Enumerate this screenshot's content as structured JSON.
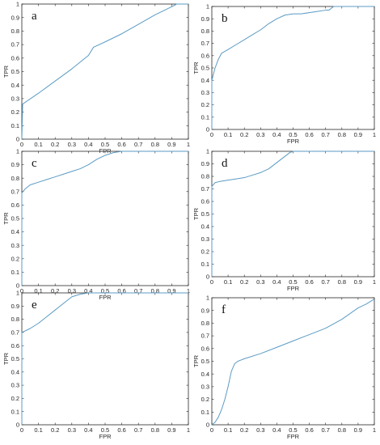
{
  "chart_data": [
    {
      "type": "line",
      "panel": "a",
      "xlabel": "FPR",
      "ylabel": "TPR",
      "xlim": [
        0,
        1
      ],
      "ylim": [
        0,
        1
      ],
      "grid": false,
      "xticks": [
        "0",
        "0.1",
        "0.2",
        "0.3",
        "0.4",
        "0.5",
        "0.6",
        "0.7",
        "0.8",
        "0.9",
        "1"
      ],
      "yticks": [
        "0",
        "0.1",
        "0.2",
        "0.3",
        "0.4",
        "0.5",
        "0.6",
        "0.7",
        "0.8",
        "0.9",
        "1"
      ],
      "line_color": "#5b9bc4",
      "x": [
        0,
        0.005,
        0.1,
        0.2,
        0.3,
        0.4,
        0.43,
        0.5,
        0.6,
        0.7,
        0.8,
        0.9,
        0.93,
        1.0
      ],
      "y": [
        0,
        0.26,
        0.34,
        0.43,
        0.52,
        0.62,
        0.68,
        0.72,
        0.78,
        0.85,
        0.92,
        0.98,
        1.0,
        1.0
      ]
    },
    {
      "type": "line",
      "panel": "b",
      "xlabel": "FPR",
      "ylabel": "TPR",
      "xlim": [
        0,
        1
      ],
      "ylim": [
        0,
        1
      ],
      "grid": false,
      "xticks": [
        "0",
        "0.1",
        "0.2",
        "0.3",
        "0.4",
        "0.5",
        "0.6",
        "0.7",
        "0.8",
        "0.9",
        "1"
      ],
      "yticks": [
        "0",
        "0.1",
        "0.2",
        "0.3",
        "0.4",
        "0.5",
        "0.6",
        "0.7",
        "0.8",
        "0.9",
        "1"
      ],
      "line_color": "#5b9bc4",
      "x": [
        0,
        0.0,
        0.02,
        0.04,
        0.06,
        0.1,
        0.15,
        0.2,
        0.25,
        0.3,
        0.35,
        0.4,
        0.45,
        0.5,
        0.55,
        0.6,
        0.65,
        0.7,
        0.72,
        0.75,
        1.0
      ],
      "y": [
        0,
        0.4,
        0.5,
        0.57,
        0.62,
        0.65,
        0.69,
        0.73,
        0.77,
        0.81,
        0.86,
        0.9,
        0.93,
        0.94,
        0.94,
        0.95,
        0.96,
        0.97,
        0.97,
        1.0,
        1.0
      ]
    },
    {
      "type": "line",
      "panel": "c",
      "xlabel": "FPR",
      "ylabel": "TPR",
      "xlim": [
        0,
        1
      ],
      "ylim": [
        0,
        1
      ],
      "grid": false,
      "xticks": [
        "0",
        "0.1",
        "0.2",
        "0.3",
        "0.4",
        "0.5",
        "0.6",
        "0.7",
        "0.8",
        "0.9",
        "1"
      ],
      "yticks": [
        "0",
        "0.1",
        "0.2",
        "0.3",
        "0.4",
        "0.5",
        "0.6",
        "0.7",
        "0.8",
        "0.9",
        "1"
      ],
      "line_color": "#5b9bc4",
      "x": [
        0,
        0.0,
        0.02,
        0.05,
        0.1,
        0.15,
        0.2,
        0.25,
        0.3,
        0.35,
        0.4,
        0.45,
        0.5,
        0.55,
        0.6,
        0.65,
        1.0
      ],
      "y": [
        0,
        0.69,
        0.72,
        0.75,
        0.77,
        0.79,
        0.81,
        0.83,
        0.85,
        0.87,
        0.9,
        0.94,
        0.97,
        0.99,
        1.0,
        1.0,
        1.0
      ]
    },
    {
      "type": "line",
      "panel": "d",
      "xlabel": "FPR",
      "ylabel": "TPR",
      "xlim": [
        0,
        1
      ],
      "ylim": [
        0,
        1
      ],
      "grid": false,
      "xticks": [
        "0",
        "0.1",
        "0.2",
        "0.3",
        "0.4",
        "0.5",
        "0.6",
        "0.7",
        "0.8",
        "0.9",
        "1"
      ],
      "yticks": [
        "0",
        "0.1",
        "0.2",
        "0.3",
        "0.4",
        "0.5",
        "0.6",
        "0.7",
        "0.8",
        "0.9",
        "1"
      ],
      "line_color": "#5b9bc4",
      "x": [
        0,
        0.0,
        0.02,
        0.05,
        0.1,
        0.15,
        0.2,
        0.25,
        0.3,
        0.35,
        0.4,
        0.45,
        0.48,
        0.5,
        0.6,
        0.7,
        1.0
      ],
      "y": [
        0,
        0.72,
        0.75,
        0.76,
        0.77,
        0.78,
        0.79,
        0.81,
        0.83,
        0.86,
        0.91,
        0.96,
        0.99,
        1.0,
        1.0,
        1.0,
        1.0
      ]
    },
    {
      "type": "line",
      "panel": "e",
      "xlabel": "FPR",
      "ylabel": "TPR",
      "xlim": [
        0,
        1
      ],
      "ylim": [
        0,
        1
      ],
      "grid": false,
      "xticks": [
        "0",
        "0.1",
        "0.2",
        "0.3",
        "0.4",
        "0.5",
        "0.6",
        "0.7",
        "0.8",
        "0.9",
        "1"
      ],
      "yticks": [
        "0",
        "0.1",
        "0.2",
        "0.3",
        "0.4",
        "0.5",
        "0.6",
        "0.7",
        "0.8",
        "0.9",
        "1"
      ],
      "line_color": "#5b9bc4",
      "x": [
        0,
        0.0,
        0.05,
        0.1,
        0.15,
        0.2,
        0.25,
        0.3,
        0.35,
        0.4,
        0.45,
        0.5,
        1.0
      ],
      "y": [
        0,
        0.7,
        0.73,
        0.77,
        0.82,
        0.87,
        0.92,
        0.97,
        0.99,
        1.0,
        1.0,
        1.0,
        1.0
      ]
    },
    {
      "type": "line",
      "panel": "f",
      "xlabel": "FPR",
      "ylabel": "TPR",
      "xlim": [
        0,
        1
      ],
      "ylim": [
        0,
        1
      ],
      "grid": false,
      "xticks": [
        "0",
        "0.1",
        "0.2",
        "0.3",
        "0.4",
        "0.5",
        "0.6",
        "0.7",
        "0.8",
        "0.9",
        "1"
      ],
      "yticks": [
        "0",
        "0.1",
        "0.2",
        "0.3",
        "0.4",
        "0.5",
        "0.6",
        "0.7",
        "0.8",
        "0.9",
        "1"
      ],
      "line_color": "#5b9bc4",
      "x": [
        0,
        0.02,
        0.04,
        0.06,
        0.08,
        0.1,
        0.12,
        0.14,
        0.16,
        0.18,
        0.2,
        0.3,
        0.4,
        0.5,
        0.6,
        0.7,
        0.8,
        0.9,
        0.95,
        1.0
      ],
      "y": [
        0,
        0.02,
        0.06,
        0.12,
        0.2,
        0.3,
        0.42,
        0.48,
        0.5,
        0.51,
        0.52,
        0.56,
        0.61,
        0.66,
        0.71,
        0.76,
        0.83,
        0.92,
        0.95,
        0.99
      ]
    }
  ]
}
